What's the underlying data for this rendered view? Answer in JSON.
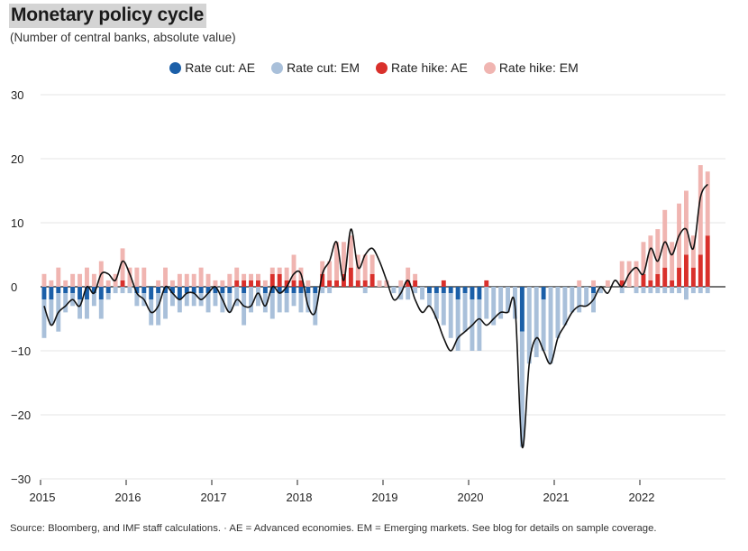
{
  "title": "Monetary policy cycle",
  "subtitle": "(Number of central banks, absolute value)",
  "source": "Source: Bloomberg, and IMF staff calculations. · AE = Advanced economies. EM = Emerging markets. See blog for details on sample coverage.",
  "colors": {
    "cut_ae": "#1b5fa8",
    "cut_em": "#a9c0da",
    "hike_ae": "#d9302b",
    "hike_em": "#f0b5b1",
    "net_line": "#111111"
  },
  "chart_data": {
    "type": "bar",
    "stacked": true,
    "title": "Monetary policy cycle",
    "ylabel": "Number of central banks, absolute value",
    "ylim": [
      -30,
      30
    ],
    "yticks": [
      30,
      20,
      10,
      0,
      -10,
      -20,
      -30
    ],
    "ytick_labels": [
      "30",
      "20",
      "10",
      "0",
      "−10",
      "−20",
      "−30"
    ],
    "x_start": "2015-01",
    "xticks": [
      "2015",
      "2016",
      "2017",
      "2018",
      "2019",
      "2020",
      "2021",
      "2022"
    ],
    "legend": [
      "Rate cut: AE",
      "Rate cut: EM",
      "Rate hike: AE",
      "Rate hike: EM"
    ],
    "series": [
      {
        "name": "Rate cut: AE",
        "values": [
          -2,
          -2,
          -1,
          -1,
          -1,
          -2,
          -2,
          -1,
          -2,
          -1,
          0,
          0,
          0,
          -1,
          -1,
          -2,
          -1,
          -1,
          -1,
          -2,
          -1,
          -1,
          -1,
          -1,
          -1,
          -1,
          -1,
          0,
          -1,
          0,
          0,
          -1,
          -1,
          -1,
          -1,
          -1,
          -1,
          -1,
          -1,
          0,
          0,
          0,
          0,
          0,
          0,
          0,
          0,
          0,
          0,
          0,
          0,
          0,
          0,
          0,
          -1,
          -1,
          -1,
          -1,
          -2,
          -1,
          -2,
          -2,
          0,
          0,
          0,
          0,
          0,
          -7,
          0,
          0,
          -2,
          0,
          0,
          0,
          0,
          0,
          0,
          -1,
          0,
          0,
          0,
          0,
          0,
          0,
          0,
          0,
          0,
          0,
          0,
          0,
          0,
          0,
          0,
          0,
          0,
          0
        ]
      },
      {
        "name": "Rate cut: EM",
        "values": [
          -6,
          -4,
          -6,
          -3,
          -2,
          -3,
          -3,
          -2,
          -3,
          -1,
          -1,
          -1,
          -1,
          -2,
          -2,
          -4,
          -5,
          -4,
          -2,
          -2,
          -2,
          -2,
          -2,
          -3,
          -2,
          -3,
          -3,
          -3,
          -5,
          -4,
          -3,
          -3,
          -4,
          -3,
          -3,
          -2,
          -3,
          -3,
          -5,
          -1,
          -1,
          0,
          0,
          0,
          0,
          -1,
          0,
          0,
          0,
          -1,
          -2,
          -2,
          -1,
          -2,
          -2,
          -4,
          -5,
          -7,
          -8,
          -6,
          -8,
          -8,
          -5,
          -6,
          -5,
          -4,
          -5,
          -18,
          -12,
          -11,
          -8,
          -12,
          -8,
          -6,
          -4,
          -4,
          -3,
          -3,
          -1,
          0,
          0,
          -1,
          0,
          -1,
          -1,
          -1,
          -1,
          -1,
          -1,
          -1,
          -2,
          -1,
          -1,
          -1
        ]
      },
      {
        "name": "Rate hike: AE",
        "values": [
          0,
          0,
          0,
          0,
          0,
          0,
          0,
          0,
          0,
          0,
          0,
          1,
          0,
          0,
          0,
          0,
          0,
          0,
          0,
          0,
          0,
          0,
          0,
          0,
          0,
          0,
          0,
          1,
          1,
          1,
          1,
          0,
          2,
          2,
          1,
          1,
          1,
          0,
          0,
          2,
          1,
          1,
          2,
          3,
          1,
          1,
          2,
          0,
          0,
          0,
          0,
          1,
          1,
          0,
          0,
          0,
          1,
          0,
          0,
          0,
          0,
          0,
          1,
          0,
          0,
          0,
          0,
          0,
          0,
          0,
          0,
          0,
          0,
          0,
          0,
          0,
          0,
          0,
          0,
          0,
          0,
          1,
          0,
          0,
          2,
          1,
          2,
          3,
          1,
          3,
          5,
          3,
          5,
          8
        ]
      },
      {
        "name": "Rate hike: EM",
        "values": [
          2,
          1,
          3,
          1,
          2,
          2,
          3,
          2,
          4,
          1,
          2,
          5,
          3,
          3,
          3,
          0,
          1,
          3,
          1,
          2,
          2,
          2,
          3,
          2,
          1,
          1,
          2,
          2,
          1,
          1,
          1,
          1,
          1,
          1,
          2,
          4,
          2,
          1,
          0,
          2,
          3,
          6,
          5,
          5,
          4,
          4,
          3,
          1,
          1,
          0,
          1,
          2,
          1,
          0,
          0,
          0,
          0,
          0,
          0,
          0,
          0,
          0,
          0,
          0,
          0,
          0,
          0,
          0,
          0,
          0,
          0,
          0,
          0,
          0,
          0,
          1,
          0,
          1,
          0,
          1,
          0,
          3,
          4,
          4,
          5,
          7,
          7,
          9,
          6,
          10,
          10,
          5,
          14,
          10
        ]
      },
      {
        "name": "Net",
        "type": "line",
        "values": [
          -3,
          -6,
          -4,
          -3,
          -2,
          -3,
          0,
          -1,
          2,
          2,
          1,
          4,
          2,
          -1,
          -2,
          -4,
          -3,
          0,
          -1,
          -2,
          -1,
          -1,
          -2,
          -1,
          0,
          -2,
          -4,
          -2,
          -3,
          -3,
          -1,
          -3,
          0,
          -1,
          0,
          2,
          2,
          -3,
          -4,
          2,
          4,
          7,
          1,
          9,
          3,
          5,
          6,
          4,
          1,
          -2,
          -1,
          1,
          -2,
          -4,
          -3,
          -5,
          -8,
          -10,
          -8,
          -7,
          -6,
          -5,
          -6,
          -5,
          -4,
          -4,
          -3,
          -25,
          -12,
          -8,
          -10,
          -12,
          -8,
          -6,
          -4,
          -3,
          -3,
          -2,
          0,
          -1,
          1,
          0,
          2,
          3,
          2,
          6,
          4,
          7,
          5,
          8,
          9,
          6,
          14,
          16
        ]
      }
    ]
  }
}
